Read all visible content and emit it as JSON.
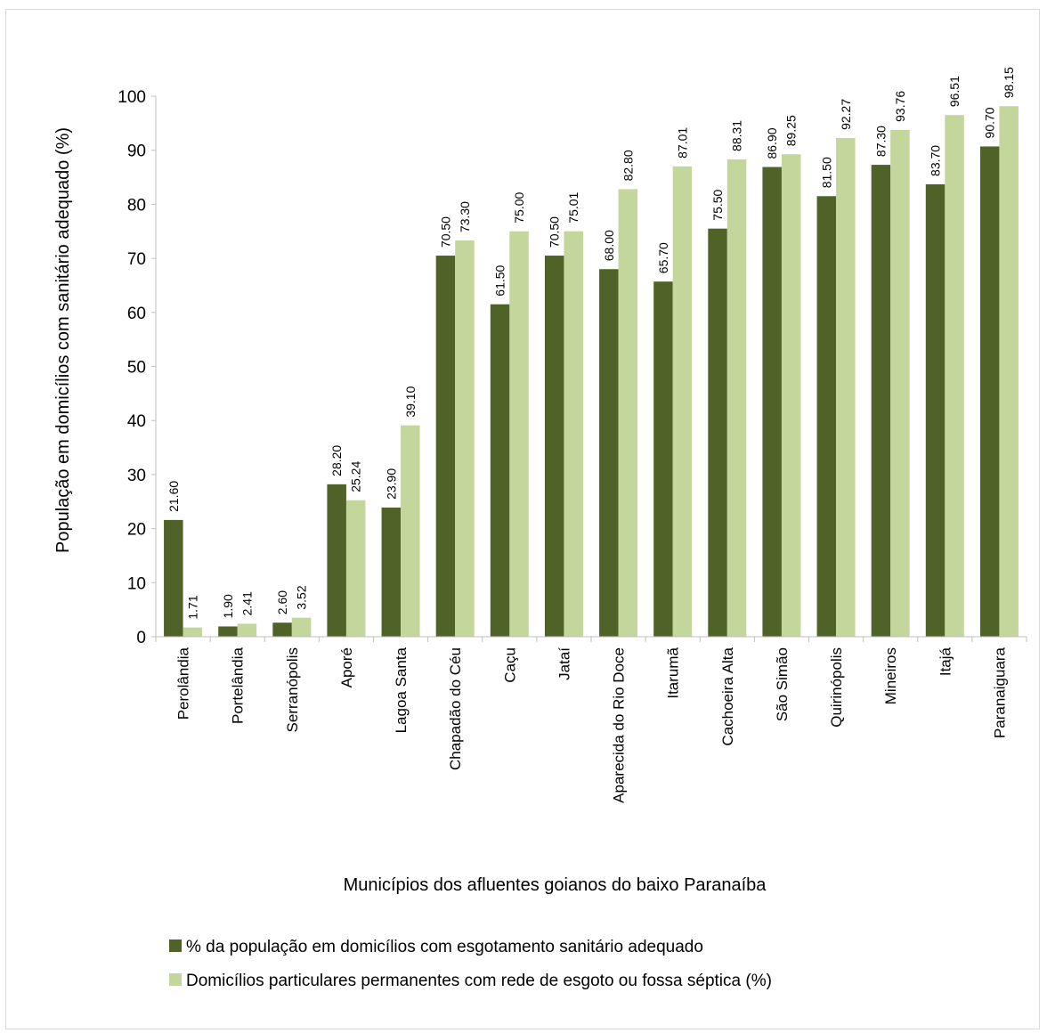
{
  "chart_data": {
    "type": "bar",
    "ylabel": "População em domicílios com sanitário adequado (%)",
    "xlabel": "Municípios dos afluentes goianos do baixo Paranaíba",
    "ylim": [
      0,
      100
    ],
    "yticks": [
      0,
      10,
      20,
      30,
      40,
      50,
      60,
      70,
      80,
      90,
      100
    ],
    "grid": false,
    "legend_position": "bottom",
    "categories": [
      "Perolândia",
      "Portelândia",
      "Serranópolis",
      "Aporé",
      "Lagoa Santa",
      "Chapadão do Céu",
      "Caçu",
      "Jataí",
      "Aparecida do Rio Doce",
      "Itarumã",
      "Cachoeira Alta",
      "São Simão",
      "Quirinópolis",
      "Mineiros",
      "Itajá",
      "Paranaiguara"
    ],
    "series": [
      {
        "name": "% da população em domicílios com esgotamento sanitário adequado",
        "color": "#4f6228",
        "values": [
          21.6,
          1.9,
          2.6,
          28.2,
          23.9,
          70.5,
          61.5,
          70.5,
          68.0,
          65.7,
          75.5,
          86.9,
          81.5,
          87.3,
          83.7,
          90.7
        ],
        "labels": [
          "21.60",
          "1.90",
          "2.60",
          "28.20",
          "23.90",
          "70.50",
          "61.50",
          "70.50",
          "68.00",
          "65.70",
          "75.50",
          "86.90",
          "81.50",
          "87.30",
          "83.70",
          "90.70"
        ]
      },
      {
        "name": "Domicílios particulares permanentes com rede de esgoto ou fossa séptica (%)",
        "color": "#c3d69b",
        "values": [
          1.71,
          2.41,
          3.52,
          25.24,
          39.1,
          73.3,
          75.0,
          75.01,
          82.8,
          87.01,
          88.31,
          89.25,
          92.27,
          93.76,
          96.51,
          98.15
        ],
        "labels": [
          "1.71",
          "2.41",
          "3.52",
          "25.24",
          "39.10",
          "73.30",
          "75.00",
          "75.01",
          "82.80",
          "87.01",
          "88.31",
          "89.25",
          "92.27",
          "93.76",
          "96.51",
          "98.15"
        ]
      }
    ]
  }
}
